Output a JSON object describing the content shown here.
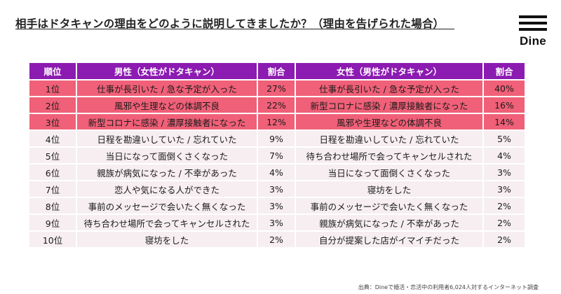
{
  "title": "相手はドタキャンの理由をどのように説明してきましたか？（理由を告げられた場合）",
  "logo": "Dine",
  "source": "出典：Dineで婚活・恋活中の利用者6,024人対するインターネット調査",
  "chart_data": {
    "type": "table",
    "columns": [
      "順位",
      "男性（女性がドタキャン）",
      "割合",
      "女性（男性がドタキャン）",
      "割合"
    ],
    "rows": [
      [
        "1位",
        "仕事が長引いた / 急な予定が入った",
        "27%",
        "仕事が長引いた / 急な予定が入った",
        "40%"
      ],
      [
        "2位",
        "風邪や生理などの体調不良",
        "22%",
        "新型コロナに感染 / 濃厚接触者になった",
        "16%"
      ],
      [
        "3位",
        "新型コロナに感染 / 濃厚接触者になった",
        "12%",
        "風邪や生理などの体調不良",
        "14%"
      ],
      [
        "4位",
        "日程を勘違いしていた / 忘れていた",
        "9%",
        "日程を勘違いしていた / 忘れていた",
        "5%"
      ],
      [
        "5位",
        "当日になって面倒くさくなった",
        "7%",
        "待ち合わせ場所で会ってキャンセルされた",
        "4%"
      ],
      [
        "6位",
        "親族が病気になった / 不幸があった",
        "4%",
        "当日になって面倒くさくなった",
        "3%"
      ],
      [
        "7位",
        "恋人や気になる人ができた",
        "3%",
        "寝坊をした",
        "3%"
      ],
      [
        "8位",
        "事前のメッセージで会いたく無くなった",
        "3%",
        "事前のメッセージで会いたく無くなった",
        "2%"
      ],
      [
        "9位",
        "待ち合わせ場所で会ってキャンセルされた",
        "3%",
        "親族が病気になった / 不幸があった",
        "2%"
      ],
      [
        "10位",
        "寝坊をした",
        "2%",
        "自分が提案した店がイマイチだった",
        "2%"
      ]
    ]
  },
  "colors": {
    "header": "#8c1bb1",
    "highlight_rows": "#f06078",
    "other_rows": "#f6eef0"
  }
}
